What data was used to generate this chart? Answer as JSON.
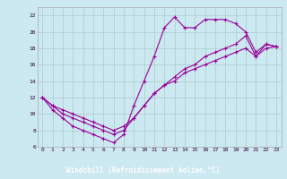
{
  "xlabel": "Windchill (Refroidissement éolien,°C)",
  "bg_color": "#cce8f0",
  "line_color": "#990099",
  "grid_color": "#aacccc",
  "xlabel_bg": "#660066",
  "xlabel_fg": "#ffffff",
  "xlim": [
    -0.5,
    23.5
  ],
  "ylim": [
    6,
    23
  ],
  "xticks": [
    0,
    1,
    2,
    3,
    4,
    5,
    6,
    7,
    8,
    9,
    10,
    11,
    12,
    13,
    14,
    15,
    16,
    17,
    18,
    19,
    20,
    21,
    22,
    23
  ],
  "yticks": [
    6,
    8,
    10,
    12,
    14,
    16,
    18,
    20,
    22
  ],
  "line1_x": [
    0,
    1,
    2,
    3,
    4,
    5,
    6,
    7,
    8,
    9,
    10,
    11,
    12,
    13,
    14,
    15,
    16,
    17,
    18,
    19,
    20,
    21,
    22,
    23
  ],
  "line1_y": [
    12,
    10.5,
    9.5,
    8.5,
    8,
    7.5,
    7,
    6.5,
    7.5,
    11,
    14,
    17,
    20.5,
    21.8,
    20.5,
    20.5,
    21.5,
    21.5,
    21.5,
    21,
    20,
    17.5,
    18.5,
    18.2
  ],
  "line2_x": [
    0,
    1,
    2,
    3,
    4,
    5,
    6,
    7,
    8,
    9,
    10,
    11,
    12,
    13,
    14,
    15,
    16,
    17,
    18,
    19,
    20,
    21,
    22,
    23
  ],
  "line2_y": [
    12,
    11.0,
    10.0,
    9.5,
    9.0,
    8.5,
    8.0,
    7.5,
    8.0,
    9.5,
    11.0,
    12.5,
    13.5,
    14.5,
    15.5,
    16.0,
    17.0,
    17.5,
    18.0,
    18.5,
    19.5,
    17.0,
    18.5,
    18.2
  ],
  "line3_x": [
    0,
    1,
    2,
    3,
    4,
    5,
    6,
    7,
    8,
    9,
    10,
    11,
    12,
    13,
    14,
    15,
    16,
    17,
    18,
    19,
    20,
    21,
    22,
    23
  ],
  "line3_y": [
    12,
    11.0,
    10.5,
    10.0,
    9.5,
    9.0,
    8.5,
    8.0,
    8.5,
    9.5,
    11.0,
    12.5,
    13.5,
    14.0,
    15.0,
    15.5,
    16.0,
    16.5,
    17.0,
    17.5,
    18.0,
    17.0,
    18.0,
    18.2
  ]
}
